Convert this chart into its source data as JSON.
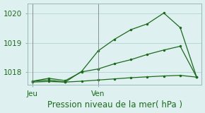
{
  "bg_color": "#dff0f0",
  "grid_color": "#b8d8d8",
  "line_color": "#1a6b1a",
  "title": "Pression niveau de la mer( hPa )",
  "ylim": [
    1017.55,
    1020.35
  ],
  "yticks": [
    1018,
    1019,
    1020
  ],
  "xlim": [
    -0.3,
    10.3
  ],
  "series1_x": [
    0,
    1,
    2,
    3,
    4,
    5,
    6,
    7,
    8,
    9,
    10
  ],
  "series1_y": [
    1017.65,
    1017.67,
    1017.65,
    1017.68,
    1017.72,
    1017.76,
    1017.8,
    1017.83,
    1017.86,
    1017.88,
    1017.82
  ],
  "series2_x": [
    0,
    1,
    2,
    3,
    4,
    5,
    6,
    7,
    8,
    9,
    10
  ],
  "series2_y": [
    1017.68,
    1017.78,
    1017.7,
    1018.0,
    1018.1,
    1018.28,
    1018.42,
    1018.6,
    1018.75,
    1018.88,
    1017.82
  ],
  "series3_x": [
    0,
    1,
    2,
    3,
    4,
    5,
    6,
    7,
    8,
    9,
    10
  ],
  "series3_y": [
    1017.68,
    1017.72,
    1017.65,
    1018.02,
    1018.72,
    1019.12,
    1019.45,
    1019.65,
    1020.02,
    1019.52,
    1017.82
  ],
  "xtick_pos": [
    0,
    4
  ],
  "xtick_labels": [
    "Jeu",
    "Ven"
  ],
  "marker_size": 2.5,
  "title_fontsize": 8.5,
  "tick_fontsize": 7.5
}
